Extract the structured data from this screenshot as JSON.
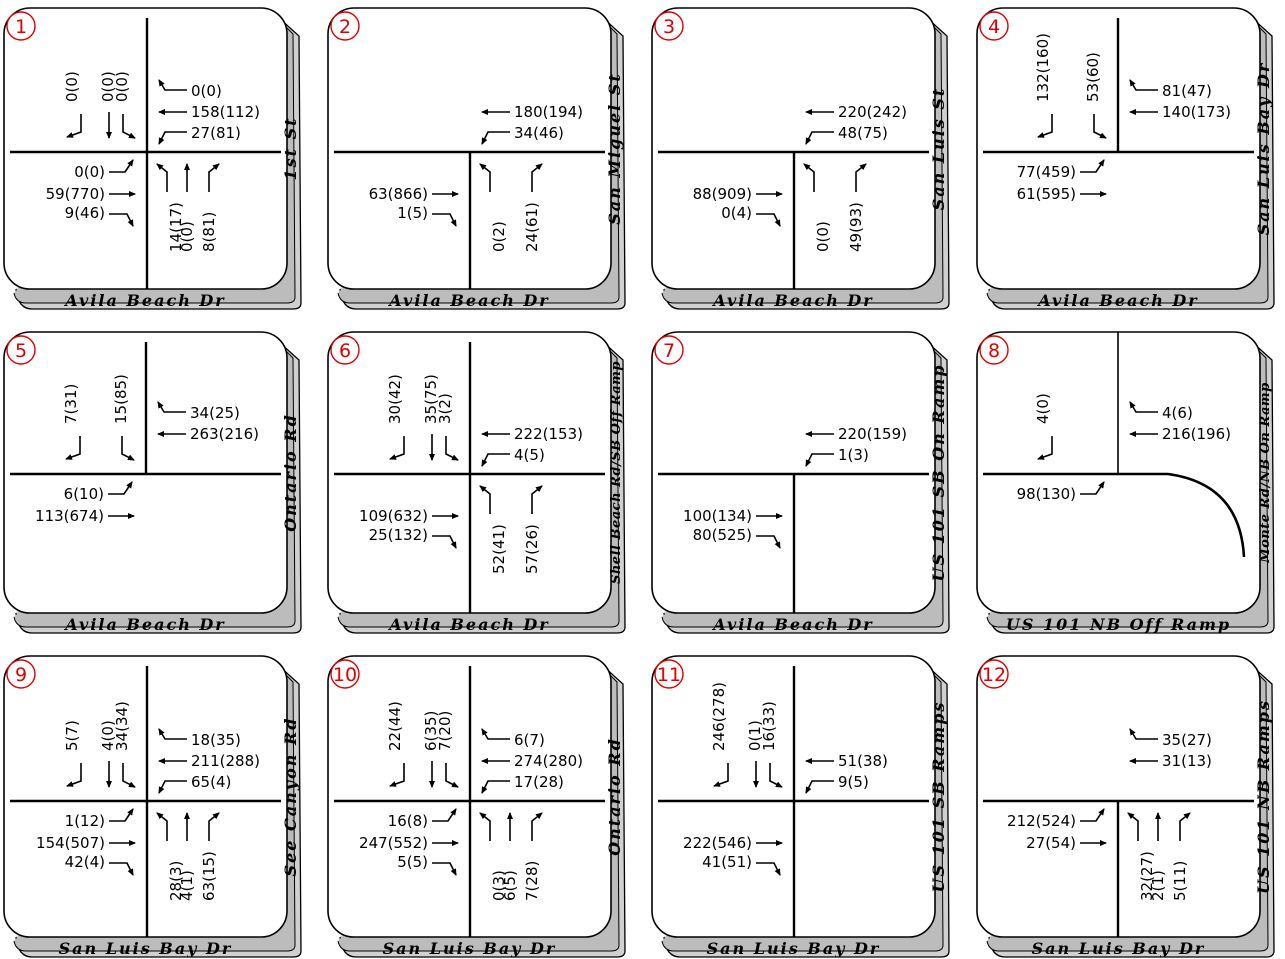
{
  "panels": [
    {
      "id": "1",
      "street_bottom": "Avila Beach Dr",
      "street_side": "1st St",
      "volumes": {
        "sb_l": "0(0)",
        "sb_t": "0(0)",
        "sb_r": "0(0)",
        "wb_r": "0(0)",
        "wb_t": "158(112)",
        "wb_l": "27(81)",
        "eb_l": "0(0)",
        "eb_t": "59(770)",
        "eb_r": "9(46)",
        "nb_l": "14(17)",
        "nb_t": "0(0)",
        "nb_r": "8(81)"
      }
    },
    {
      "id": "2",
      "street_bottom": "Avila Beach Dr",
      "street_side": "San Miguel St",
      "volumes": {
        "wb_t": "180(194)",
        "wb_l": "34(46)",
        "eb_t": "63(866)",
        "eb_r": "1(5)",
        "nb_l": "0(2)",
        "nb_r": "24(61)"
      }
    },
    {
      "id": "3",
      "street_bottom": "Avila Beach Dr",
      "street_side": "San Luis St",
      "volumes": {
        "wb_t": "220(242)",
        "wb_l": "48(75)",
        "eb_t": "88(909)",
        "eb_r": "0(4)",
        "nb_l": "0(0)",
        "nb_r": "49(93)"
      }
    },
    {
      "id": "4",
      "street_bottom": "Avila Beach Dr",
      "street_side": "San Luis Bay Dr",
      "volumes": {
        "sb_l": "132(160)",
        "sb_r": "53(60)",
        "wb_r": "81(47)",
        "wb_t": "140(173)",
        "eb_l": "77(459)",
        "eb_t": "61(595)"
      }
    },
    {
      "id": "5",
      "street_bottom": "Avila Beach Dr",
      "street_side": "Ontario Rd",
      "volumes": {
        "sb_l": "7(31)",
        "sb_r": "15(85)",
        "wb_r": "34(25)",
        "wb_t": "263(216)",
        "eb_l": "6(10)",
        "eb_t": "113(674)"
      }
    },
    {
      "id": "6",
      "street_bottom": "Avila Beach Dr",
      "street_side": "Shell Beach Rd/SB Off Ramp",
      "volumes": {
        "sb_l": "30(42)",
        "sb_t": "35(75)",
        "sb_r": "3(2)",
        "wb_t": "222(153)",
        "wb_l": "4(5)",
        "eb_t": "109(632)",
        "eb_r": "25(132)",
        "nb_l": "52(41)",
        "nb_r": "57(26)"
      }
    },
    {
      "id": "7",
      "street_bottom": "Avila Beach Dr",
      "street_side": "US 101 SB On Ramp",
      "volumes": {
        "wb_t": "220(159)",
        "wb_l": "1(3)",
        "eb_t": "100(134)",
        "eb_r": "80(525)"
      }
    },
    {
      "id": "8",
      "street_bottom": "US 101 NB Off Ramp",
      "street_side": "Monte Rd/NB On Ramp",
      "volumes": {
        "sb_l": "4(0)",
        "wb_r": "4(6)",
        "wb_t": "216(196)",
        "eb_l": "98(130)"
      }
    },
    {
      "id": "9",
      "street_bottom": "San Luis Bay Dr",
      "street_side": "See Canyon Rd",
      "volumes": {
        "sb_l": "5(7)",
        "sb_t": "4(0)",
        "sb_r": "34(34)",
        "wb_r": "18(35)",
        "wb_t": "211(288)",
        "wb_l": "65(4)",
        "eb_l": "1(12)",
        "eb_t": "154(507)",
        "eb_r": "42(4)",
        "nb_l": "28(3)",
        "nb_t": "4(1)",
        "nb_r": "63(15)"
      }
    },
    {
      "id": "10",
      "street_bottom": "San Luis Bay Dr",
      "street_side": "Ontario Rd",
      "volumes": {
        "sb_l": "22(44)",
        "sb_t": "6(35)",
        "sb_r": "7(20)",
        "wb_r": "6(7)",
        "wb_t": "274(280)",
        "wb_l": "17(28)",
        "eb_l": "16(8)",
        "eb_t": "247(552)",
        "eb_r": "5(5)",
        "nb_l": "0(3)",
        "nb_t": "6(5)",
        "nb_r": "7(28)"
      }
    },
    {
      "id": "11",
      "street_bottom": "San Luis Bay Dr",
      "street_side": "US 101 SB Ramps",
      "volumes": {
        "sb_l": "246(278)",
        "sb_t": "0(1)",
        "sb_r": "16(33)",
        "wb_t": "51(38)",
        "wb_l": "9(5)",
        "eb_t": "222(546)",
        "eb_r": "41(51)"
      }
    },
    {
      "id": "12",
      "street_bottom": "San Luis Bay Dr",
      "street_side": "US 101 NB Ramps",
      "volumes": {
        "wb_r": "35(27)",
        "wb_t": "31(13)",
        "eb_l": "212(524)",
        "eb_t": "27(54)",
        "nb_l": "32(27)",
        "nb_t": "2(1)",
        "nb_r": "5(11)"
      }
    }
  ]
}
